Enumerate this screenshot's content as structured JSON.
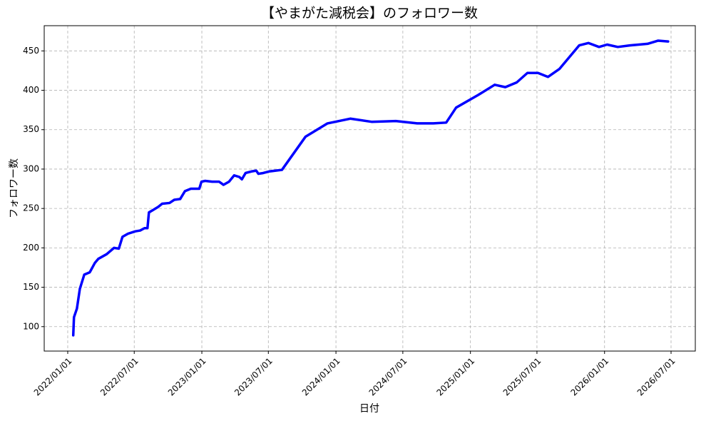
{
  "chart_data": {
    "type": "line",
    "title": "【やまがた減税会】のフォロワー数",
    "x_label": "日付",
    "y_label": "フォロワー数",
    "color": "#0000ff",
    "grid": true,
    "x": [
      "2022-01-16",
      "2022-01-18",
      "2022-01-26",
      "2022-02-03",
      "2022-02-15",
      "2022-03-02",
      "2022-03-16",
      "2022-03-25",
      "2022-04-17",
      "2022-05-07",
      "2022-05-20",
      "2022-05-30",
      "2022-06-14",
      "2022-07-04",
      "2022-07-17",
      "2022-07-29",
      "2022-08-06",
      "2022-08-10",
      "2022-08-21",
      "2022-09-04",
      "2022-09-15",
      "2022-10-05",
      "2022-10-18",
      "2022-11-03",
      "2022-11-16",
      "2022-12-02",
      "2022-12-17",
      "2022-12-25",
      "2022-12-31",
      "2023-01-10",
      "2023-01-29",
      "2023-02-17",
      "2023-03-01",
      "2023-03-16",
      "2023-03-30",
      "2023-04-13",
      "2023-04-20",
      "2023-04-30",
      "2023-05-16",
      "2023-05-29",
      "2023-06-04",
      "2023-06-17",
      "2023-07-03",
      "2023-08-07",
      "2023-10-10",
      "2023-12-09",
      "2024-02-09",
      "2024-04-07",
      "2024-06-12",
      "2024-08-09",
      "2024-09-22",
      "2024-10-27",
      "2024-11-23",
      "2025-01-22",
      "2025-03-08",
      "2025-04-06",
      "2025-05-07",
      "2025-06-05",
      "2025-07-04",
      "2025-07-31",
      "2025-08-31",
      "2025-10-24",
      "2025-11-18",
      "2025-12-17",
      "2026-01-08",
      "2026-02-06",
      "2026-03-11",
      "2026-04-28",
      "2026-05-27",
      "2026-06-23"
    ],
    "values": [
      89,
      112,
      123,
      148,
      166,
      169,
      181,
      186,
      192,
      200,
      199,
      214,
      218,
      221,
      222,
      225,
      225,
      245,
      248,
      252,
      256,
      257,
      261,
      262,
      272,
      275,
      275,
      275,
      284,
      285,
      284,
      284,
      280,
      284,
      292,
      290,
      287,
      295,
      297,
      298,
      294,
      295,
      297,
      299,
      341,
      358,
      364,
      360,
      361,
      358,
      358,
      359,
      378,
      394,
      407,
      404,
      410,
      422,
      422,
      417,
      427,
      457,
      460,
      455,
      458,
      455,
      457,
      459,
      463,
      462
    ],
    "xlim": [
      "2021-10-29",
      "2026-09-05"
    ],
    "xticks": [
      {
        "value": "2022-01-01",
        "label": "2022/01/01"
      },
      {
        "value": "2022-07-01",
        "label": "2022/07/01"
      },
      {
        "value": "2023-01-01",
        "label": "2023/01/01"
      },
      {
        "value": "2023-07-01",
        "label": "2023/07/01"
      },
      {
        "value": "2024-01-01",
        "label": "2024/01/01"
      },
      {
        "value": "2024-07-01",
        "label": "2024/07/01"
      },
      {
        "value": "2025-01-01",
        "label": "2025/01/01"
      },
      {
        "value": "2025-07-01",
        "label": "2025/07/01"
      },
      {
        "value": "2026-01-01",
        "label": "2026/01/01"
      },
      {
        "value": "2026-07-01",
        "label": "2026/07/01"
      }
    ],
    "ylim": [
      69,
      482
    ],
    "yticks": [
      100,
      150,
      200,
      250,
      300,
      350,
      400,
      450
    ]
  }
}
